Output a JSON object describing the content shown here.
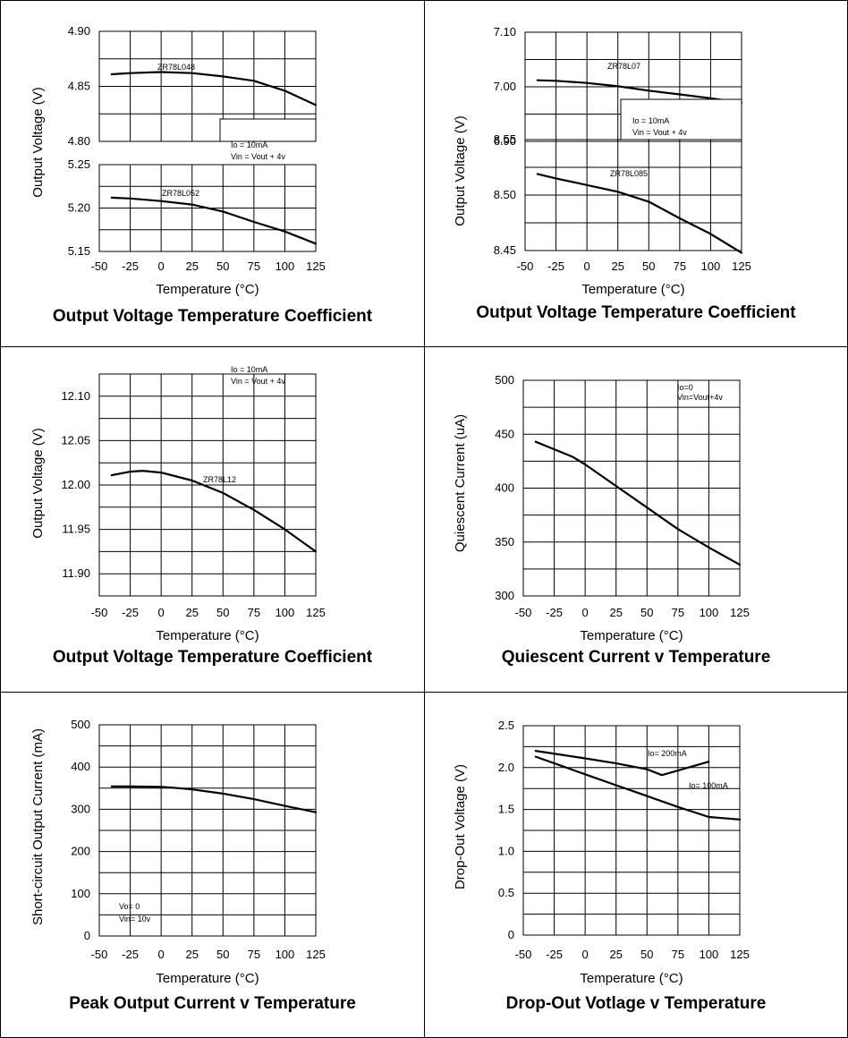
{
  "chart_data": [
    {
      "type": "line",
      "title": "Output Voltage Temperature Coefficient",
      "xlabel": "Temperature (°C)",
      "ylabel": "Output Voltage (V)",
      "xticks": [
        "-50",
        "-25",
        "0",
        "25",
        "50",
        "75",
        "100",
        "125"
      ],
      "xlim": [
        -50,
        125
      ],
      "grid": true,
      "subplots": [
        {
          "ylim": [
            4.8,
            4.9
          ],
          "yticks": [
            "4.80",
            "4.85",
            "4.90"
          ],
          "series": [
            {
              "name": "ZR78L048",
              "x": [
                -40,
                -25,
                0,
                25,
                50,
                75,
                100,
                125
              ],
              "y": [
                4.861,
                4.862,
                4.863,
                4.862,
                4.859,
                4.855,
                4.846,
                4.833
              ]
            }
          ],
          "annotations": [
            {
              "text": "ZR78L048"
            }
          ]
        },
        {
          "ylim": [
            5.15,
            5.25
          ],
          "yticks": [
            "5.15",
            "5.20",
            "5.25"
          ],
          "series": [
            {
              "name": "ZR78L052",
              "x": [
                -40,
                -25,
                0,
                25,
                50,
                75,
                100,
                125
              ],
              "y": [
                5.212,
                5.211,
                5.208,
                5.204,
                5.196,
                5.184,
                5.173,
                5.159
              ]
            }
          ],
          "annotations": [
            {
              "text": "ZR78L052"
            }
          ]
        }
      ],
      "annotations": [
        {
          "text": "Io = 10mA"
        },
        {
          "text": "Vin = Vout + 4v"
        }
      ]
    },
    {
      "type": "line",
      "title": "Output Voltage Temperature Coefficient",
      "xlabel": "Temperature (°C)",
      "ylabel": "Output Voltage (V)",
      "xticks": [
        "-50",
        "-25",
        "0",
        "25",
        "50",
        "75",
        "100",
        "125"
      ],
      "xlim": [
        -50,
        125
      ],
      "grid": true,
      "subplots": [
        {
          "ylim": [
            6.9,
            7.1
          ],
          "yticks": [
            "6.90",
            "7.00",
            "7.10"
          ],
          "series": [
            {
              "name": "ZR78L07",
              "x": [
                -40,
                -25,
                0,
                25,
                50,
                75,
                100,
                125
              ],
              "y": [
                7.012,
                7.011,
                7.007,
                7.001,
                6.993,
                6.986,
                6.979,
                6.971
              ]
            }
          ],
          "annotations": [
            {
              "text": "ZR78L07"
            }
          ]
        },
        {
          "ylim": [
            8.45,
            8.55
          ],
          "yticks": [
            "8.45",
            "8.50",
            "8.55"
          ],
          "series": [
            {
              "name": "ZR78L085",
              "x": [
                -40,
                -25,
                0,
                25,
                50,
                75,
                100,
                125
              ],
              "y": [
                8.519,
                8.515,
                8.509,
                8.503,
                8.494,
                8.479,
                8.465,
                8.448
              ]
            }
          ],
          "annotations": [
            {
              "text": "ZR78L085"
            }
          ]
        }
      ],
      "annotations": [
        {
          "text": "Io = 10mA"
        },
        {
          "text": "Vin = Vout + 4v"
        }
      ]
    },
    {
      "type": "line",
      "title": "Output Voltage Temperature Coefficient",
      "xlabel": "Temperature (°C)",
      "ylabel": "Output Voltage (V)",
      "xticks": [
        "-50",
        "-25",
        "0",
        "25",
        "50",
        "75",
        "100",
        "125"
      ],
      "xlim": [
        -50,
        125
      ],
      "yticks": [
        "11.90",
        "11.95",
        "12.00",
        "12.05",
        "12.10"
      ],
      "ylim": [
        11.875,
        12.125
      ],
      "grid": true,
      "series": [
        {
          "name": "ZR78L12",
          "x": [
            -40,
            -25,
            -15,
            0,
            25,
            50,
            75,
            100,
            125
          ],
          "y": [
            12.011,
            12.015,
            12.016,
            12.014,
            12.005,
            11.991,
            11.972,
            11.95,
            11.925
          ]
        }
      ],
      "annotations": [
        {
          "text": "ZR78L12"
        },
        {
          "text": "Io = 10mA"
        },
        {
          "text": "Vin = Vout + 4v"
        }
      ]
    },
    {
      "type": "line",
      "title": "Quiescent Current v Temperature",
      "xlabel": "Temperature (°C)",
      "ylabel": "Quiescent Current (uA)",
      "xticks": [
        "-50",
        "-25",
        "0",
        "25",
        "50",
        "75",
        "100",
        "125"
      ],
      "xlim": [
        -50,
        125
      ],
      "yticks": [
        "300",
        "350",
        "400",
        "450",
        "500"
      ],
      "ylim": [
        300,
        500
      ],
      "grid": true,
      "series": [
        {
          "name": "",
          "x": [
            -40,
            -25,
            -10,
            0,
            25,
            50,
            75,
            100,
            125
          ],
          "y": [
            443,
            436,
            429,
            422,
            402,
            382,
            362,
            345,
            329
          ]
        }
      ],
      "annotations": [
        {
          "text": "Io=0"
        },
        {
          "text": "Vin=Vout+4v"
        }
      ]
    },
    {
      "type": "line",
      "title": "Peak Output Current v Temperature",
      "xlabel": "Temperature (°C)",
      "ylabel": "Short-circuit Output Current (mA)",
      "xticks": [
        "-50",
        "-25",
        "0",
        "25",
        "50",
        "75",
        "100",
        "125"
      ],
      "xlim": [
        -50,
        125
      ],
      "yticks": [
        "0",
        "100",
        "200",
        "300",
        "400",
        "500"
      ],
      "ylim": [
        0,
        500
      ],
      "grid": true,
      "series": [
        {
          "name": "",
          "x": [
            -40,
            -25,
            0,
            10,
            25,
            50,
            75,
            100,
            125
          ],
          "y": [
            354,
            354,
            353,
            351,
            347,
            337,
            324,
            308,
            293
          ]
        }
      ],
      "annotations": [
        {
          "text": "Vo= 0"
        },
        {
          "text": "Vin= 10v"
        }
      ]
    },
    {
      "type": "line",
      "title": "Drop-Out Votlage v Temperature",
      "xlabel": "Temperature (°C)",
      "ylabel": "Drop-Out Voltage (V)",
      "xticks": [
        "-50",
        "-25",
        "0",
        "25",
        "50",
        "75",
        "100",
        "125"
      ],
      "xlim": [
        -50,
        125
      ],
      "yticks": [
        "0",
        "0.5",
        "1.0",
        "1.5",
        "2.0",
        "2.5"
      ],
      "ylim": [
        0,
        2.5
      ],
      "grid": true,
      "series": [
        {
          "name": "Io= 200mA",
          "x": [
            -40,
            0,
            25,
            50,
            62,
            100
          ],
          "y": [
            2.2,
            2.11,
            2.05,
            1.98,
            1.91,
            2.07
          ]
        },
        {
          "name": "Io= 100mA",
          "x": [
            -40,
            0,
            25,
            50,
            75,
            100,
            125
          ],
          "y": [
            2.13,
            1.92,
            1.79,
            1.66,
            1.53,
            1.41,
            1.38
          ]
        }
      ],
      "annotations": [
        {
          "text": "Io= 200mA"
        },
        {
          "text": "Io= 100mA"
        }
      ]
    }
  ]
}
